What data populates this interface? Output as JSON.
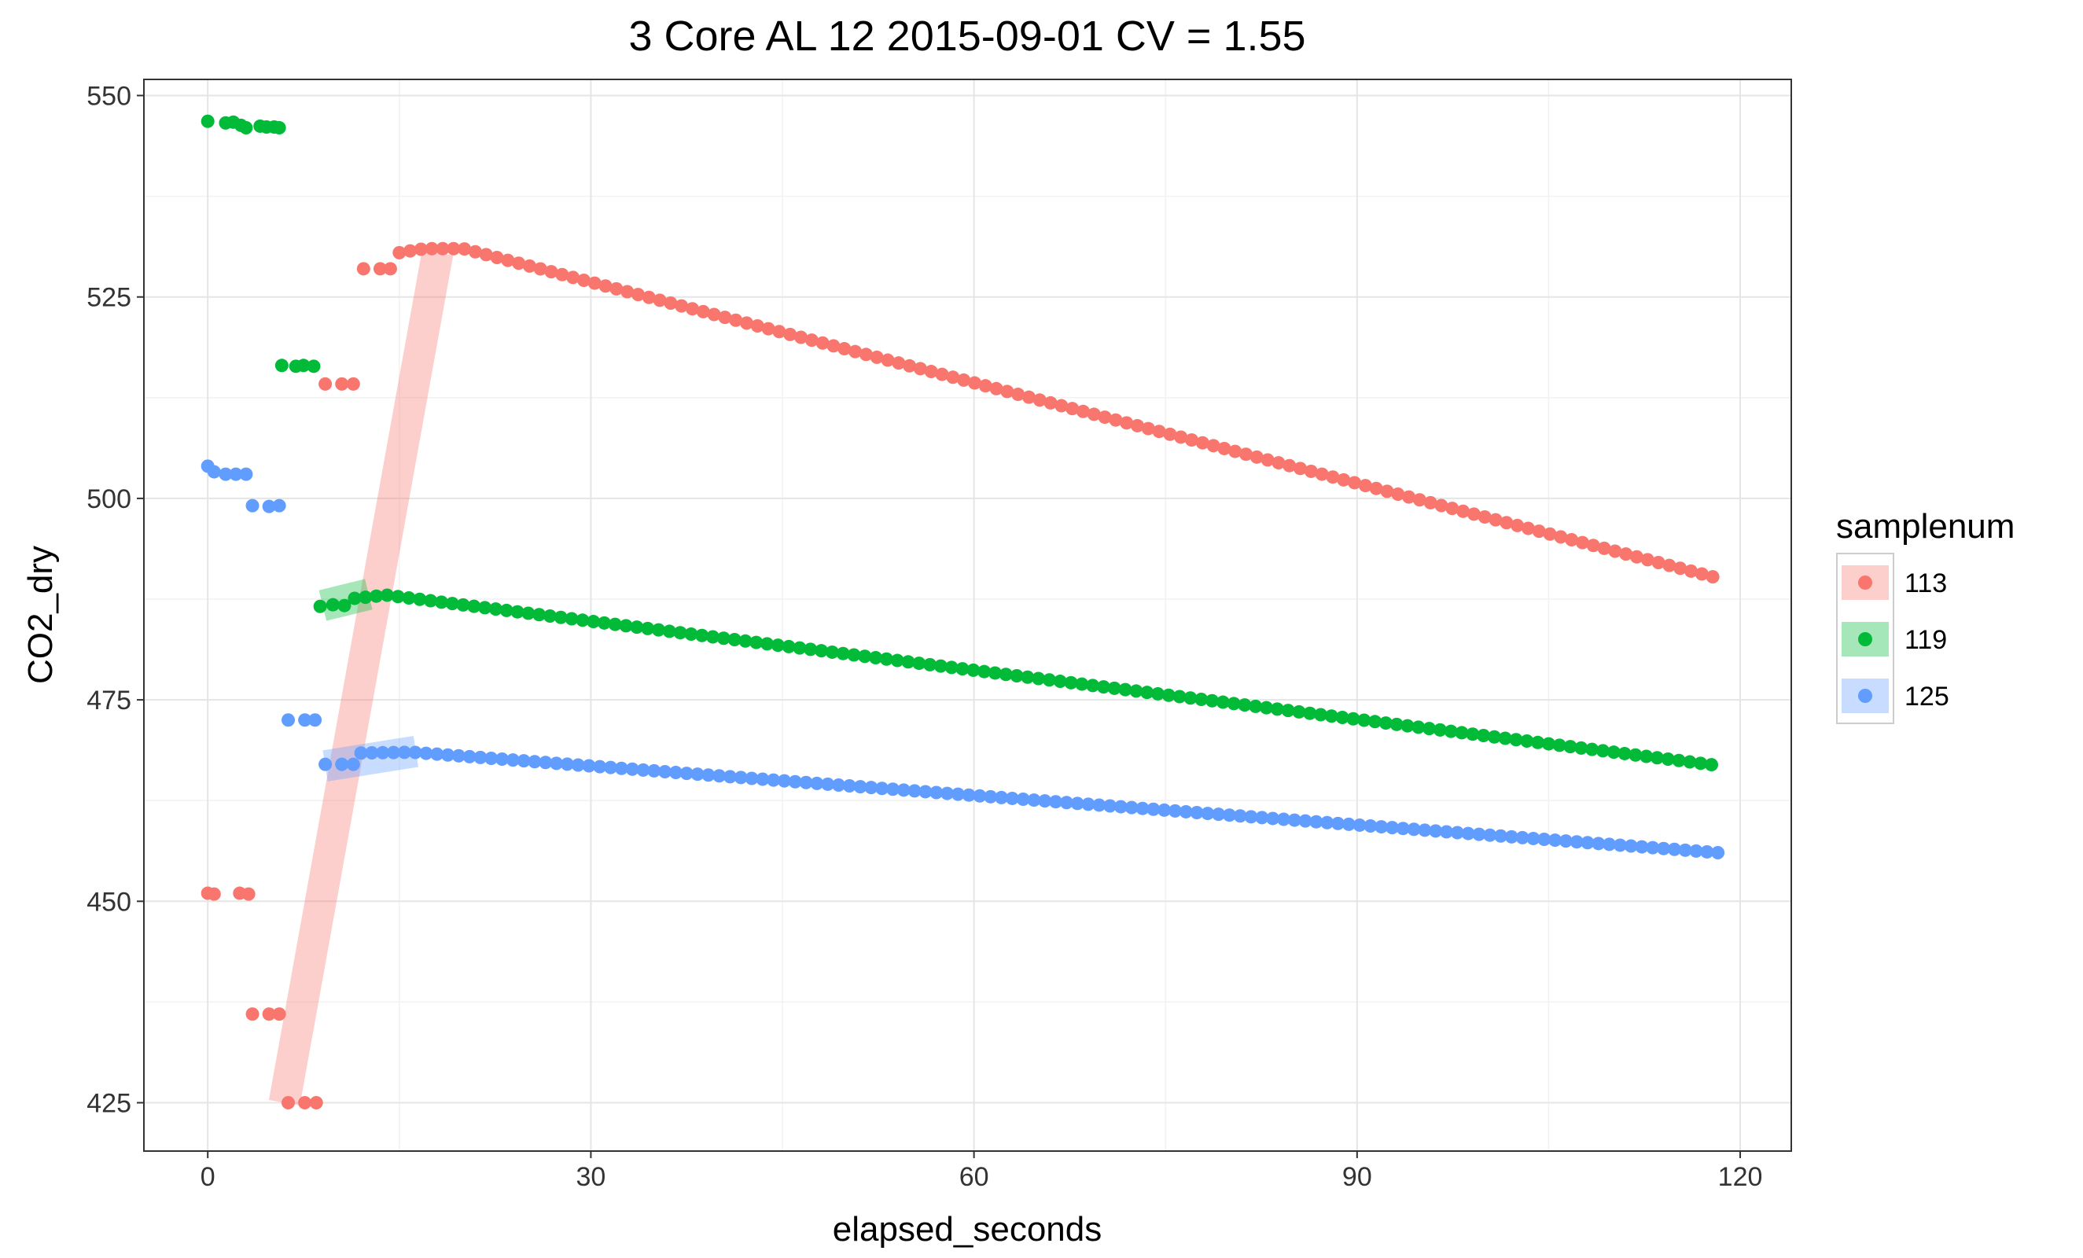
{
  "chart_data": {
    "type": "scatter",
    "title": "3 Core AL 12 2015-09-01 CV = 1.55",
    "xlabel": "elapsed_seconds",
    "ylabel": "CO2_dry",
    "xlim": [
      -5,
      124
    ],
    "ylim": [
      419,
      552
    ],
    "x_ticks": [
      0,
      30,
      60,
      90,
      120
    ],
    "x_tick_labels": [
      "0",
      "30",
      "60",
      "90",
      "120"
    ],
    "y_ticks": [
      425,
      450,
      475,
      500,
      525,
      550
    ],
    "y_tick_labels": [
      "425",
      "450",
      "475",
      "500",
      "525",
      "550"
    ],
    "grid": true,
    "legend": {
      "title": "samplenum",
      "position": "right"
    },
    "series": [
      {
        "name": "113",
        "color": "#F8766D",
        "pre_points": [
          [
            0,
            451
          ],
          [
            0.5,
            450.9
          ],
          [
            2.5,
            451
          ],
          [
            3.2,
            450.9
          ],
          [
            3.5,
            436
          ],
          [
            4.8,
            436
          ],
          [
            5.6,
            436
          ],
          [
            6.3,
            425
          ],
          [
            7.6,
            425
          ],
          [
            8.5,
            425
          ],
          [
            9.2,
            514.2
          ],
          [
            10.5,
            514.2
          ],
          [
            11.4,
            514.2
          ],
          [
            12.2,
            528.5
          ],
          [
            13.5,
            528.5
          ],
          [
            14.3,
            528.5
          ]
        ],
        "decay": {
          "x_start": 15,
          "x_end": 118.5,
          "step": 0.85,
          "y_at": [
            [
              15,
              530.5
            ],
            [
              17,
              531
            ],
            [
              20,
              531
            ],
            [
              118.5,
              490
            ]
          ]
        },
        "fit_band": {
          "x": [
            6,
            18
          ],
          "y": [
            425,
            530.5
          ]
        }
      },
      {
        "name": "119",
        "color": "#00BA38",
        "pre_points": [
          [
            0,
            546.8
          ],
          [
            1.4,
            546.6
          ],
          [
            2,
            546.7
          ],
          [
            2.6,
            546.3
          ],
          [
            3,
            546
          ],
          [
            4.1,
            546.2
          ],
          [
            4.6,
            546.1
          ],
          [
            5.2,
            546.1
          ],
          [
            5.6,
            546
          ],
          [
            5.8,
            516.5
          ],
          [
            6.9,
            516.4
          ],
          [
            7.5,
            516.5
          ],
          [
            8.3,
            516.4
          ],
          [
            8.8,
            486.6
          ],
          [
            9.8,
            486.8
          ],
          [
            10.7,
            486.7
          ]
        ],
        "decay": {
          "x_start": 11.5,
          "x_end": 118.5,
          "step": 0.85,
          "y_at": [
            [
              11.5,
              487.6
            ],
            [
              14,
              488
            ],
            [
              118.5,
              466.8
            ]
          ]
        },
        "fit_band": {
          "x": [
            9,
            12.6
          ],
          "y": [
            486.7,
            488.1
          ]
        }
      },
      {
        "name": "125",
        "color": "#619CFF",
        "pre_points": [
          [
            0,
            504
          ],
          [
            0.5,
            503.3
          ],
          [
            1.4,
            503
          ],
          [
            2.2,
            503
          ],
          [
            3,
            503
          ],
          [
            3.5,
            499.1
          ],
          [
            4.8,
            499
          ],
          [
            5.6,
            499.1
          ],
          [
            6.3,
            472.5
          ],
          [
            7.6,
            472.5
          ],
          [
            8.4,
            472.5
          ],
          [
            9.2,
            467
          ],
          [
            10.5,
            467
          ],
          [
            11.4,
            467
          ]
        ],
        "decay": {
          "x_start": 12,
          "x_end": 118.5,
          "step": 0.85,
          "y_at": [
            [
              12,
              468.4
            ],
            [
              16,
              468.5
            ],
            [
              118.5,
              456
            ]
          ]
        },
        "fit_band": {
          "x": [
            9.2,
            16.3
          ],
          "y": [
            466.8,
            468.6
          ]
        }
      }
    ]
  }
}
